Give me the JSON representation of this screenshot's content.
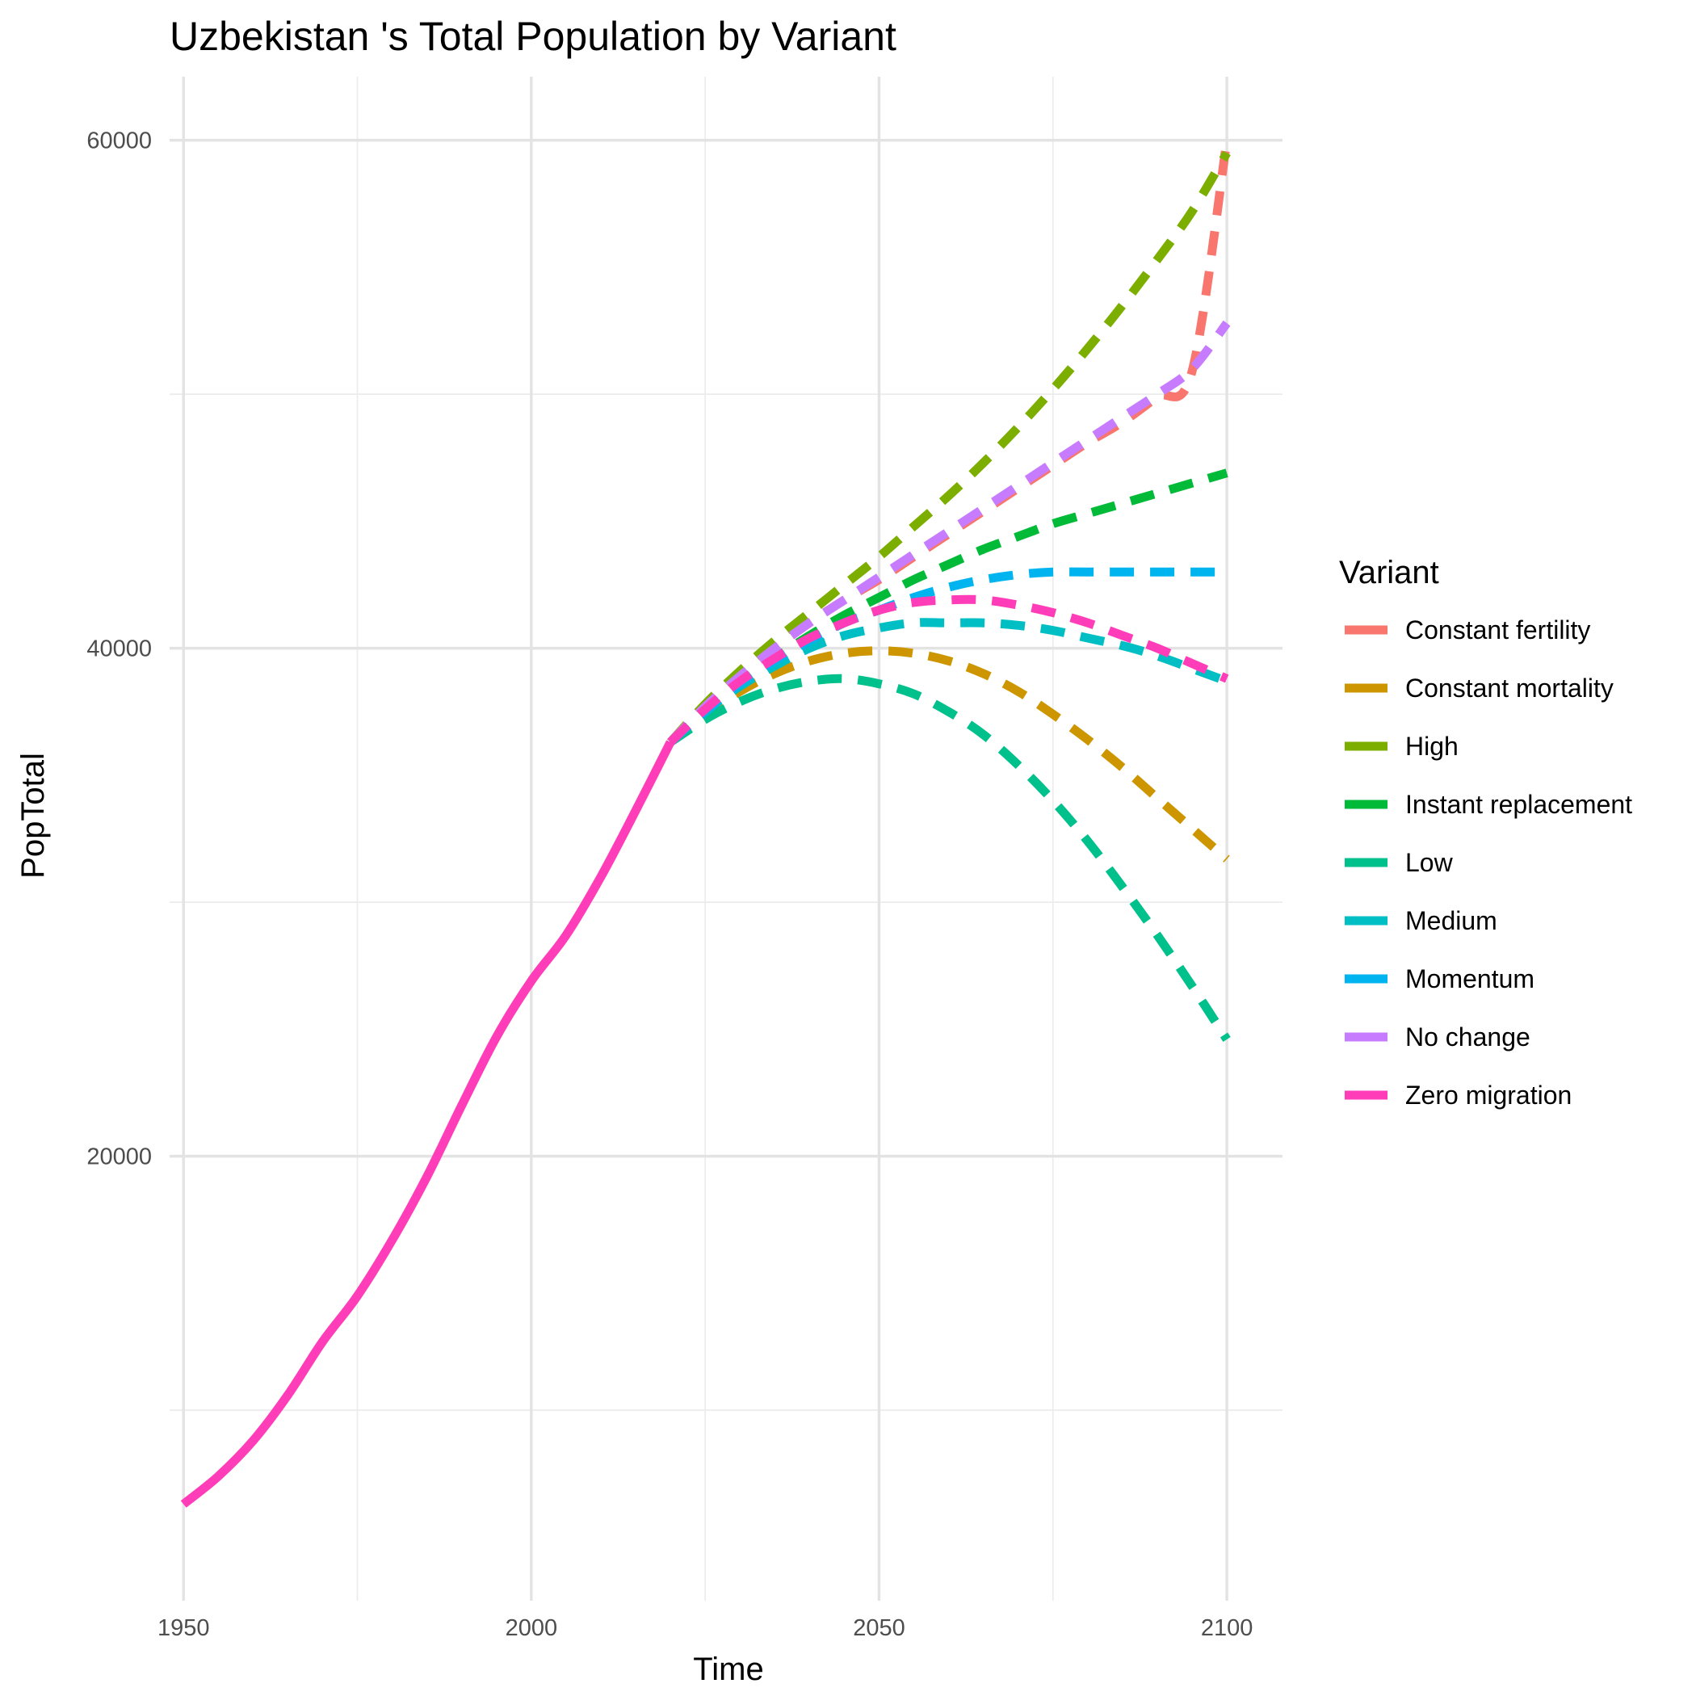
{
  "chart_data": {
    "type": "line",
    "title": "Uzbekistan 's Total Population by Variant",
    "xlabel": "Time",
    "ylabel": "PopTotal",
    "xlim": [
      1948,
      2108
    ],
    "ylim": [
      2500,
      62500
    ],
    "x_ticks": [
      1950,
      2000,
      2050,
      2100
    ],
    "x_tick_labels": [
      "1950",
      "2000",
      "2050",
      "2100"
    ],
    "y_ticks": [
      20000,
      40000,
      60000
    ],
    "y_tick_labels": [
      "20000",
      "40000",
      "60000"
    ],
    "y_minor_ticks": [
      10000,
      30000,
      50000
    ],
    "x_minor_ticks": [
      1975,
      2025,
      2075
    ],
    "grid": true,
    "legend": {
      "title": "Variant",
      "position": "right"
    },
    "historical": {
      "name": "Zero migration",
      "color": "#FF3DB8",
      "x": [
        1950,
        1955,
        1960,
        1965,
        1970,
        1975,
        1980,
        1985,
        1990,
        1995,
        2000,
        2005,
        2010,
        2015,
        2020
      ],
      "y": [
        6300,
        7400,
        8800,
        10600,
        12700,
        14500,
        16700,
        19200,
        22000,
        24700,
        26900,
        28700,
        31000,
        33600,
        36300
      ]
    },
    "series": [
      {
        "name": "Constant fertility",
        "color": "#F8766D",
        "x": [
          2020,
          2025,
          2030,
          2035,
          2040,
          2045,
          2050,
          2055,
          2060,
          2065,
          2070,
          2075,
          2080,
          2085,
          2090,
          2095,
          2100
        ],
        "y": [
          36300,
          37700,
          38900,
          40000,
          41000,
          41900,
          42700,
          43600,
          44500,
          45400,
          46300,
          47200,
          48100,
          48900,
          49900,
          50900,
          60000
        ]
      },
      {
        "name": "Constant mortality",
        "color": "#CD9600",
        "x": [
          2020,
          2025,
          2030,
          2035,
          2040,
          2045,
          2050,
          2055,
          2060,
          2065,
          2070,
          2075,
          2080,
          2085,
          2090,
          2095,
          2100
        ],
        "y": [
          36300,
          37400,
          38300,
          39000,
          39500,
          39800,
          39900,
          39800,
          39500,
          39000,
          38300,
          37400,
          36400,
          35300,
          34100,
          32900,
          31700
        ]
      },
      {
        "name": "High",
        "color": "#7CAE00",
        "x": [
          2020,
          2025,
          2030,
          2035,
          2040,
          2045,
          2050,
          2055,
          2060,
          2065,
          2070,
          2075,
          2080,
          2085,
          2090,
          2095,
          2100
        ],
        "y": [
          36300,
          37800,
          39100,
          40300,
          41400,
          42500,
          43600,
          44800,
          46000,
          47300,
          48700,
          50200,
          51800,
          53500,
          55300,
          57200,
          59500
        ]
      },
      {
        "name": "Instant replacement",
        "color": "#00BA38",
        "x": [
          2020,
          2025,
          2030,
          2035,
          2040,
          2045,
          2050,
          2055,
          2060,
          2065,
          2070,
          2075,
          2080,
          2085,
          2090,
          2095,
          2100
        ],
        "y": [
          36300,
          37500,
          38600,
          39600,
          40500,
          41300,
          42000,
          42700,
          43300,
          43900,
          44400,
          44900,
          45300,
          45700,
          46100,
          46500,
          46900
        ]
      },
      {
        "name": "Low",
        "color": "#00C08B",
        "x": [
          2020,
          2025,
          2030,
          2035,
          2040,
          2045,
          2050,
          2055,
          2060,
          2065,
          2070,
          2075,
          2080,
          2085,
          2090,
          2095,
          2100
        ],
        "y": [
          36300,
          37200,
          37900,
          38400,
          38700,
          38800,
          38600,
          38200,
          37500,
          36600,
          35400,
          34000,
          32400,
          30600,
          28700,
          26700,
          24600
        ]
      },
      {
        "name": "Medium",
        "color": "#00BFC4",
        "x": [
          2020,
          2025,
          2030,
          2035,
          2040,
          2045,
          2050,
          2055,
          2060,
          2065,
          2070,
          2075,
          2080,
          2085,
          2090,
          2095,
          2100
        ],
        "y": [
          36300,
          37500,
          38500,
          39300,
          40000,
          40500,
          40800,
          41000,
          41000,
          41000,
          40900,
          40700,
          40400,
          40100,
          39700,
          39200,
          38700
        ]
      },
      {
        "name": "Momentum",
        "color": "#00B4F0",
        "x": [
          2020,
          2025,
          2030,
          2035,
          2040,
          2045,
          2050,
          2055,
          2060,
          2065,
          2070,
          2075,
          2080,
          2085,
          2090,
          2095,
          2100
        ],
        "y": [
          36300,
          37500,
          38600,
          39500,
          40300,
          41000,
          41500,
          42000,
          42400,
          42700,
          42900,
          43000,
          43000,
          43000,
          43000,
          43000,
          43000
        ]
      },
      {
        "name": "No change",
        "color": "#C77CFF",
        "x": [
          2020,
          2025,
          2030,
          2035,
          2040,
          2045,
          2050,
          2055,
          2060,
          2065,
          2070,
          2075,
          2080,
          2085,
          2090,
          2095,
          2100
        ],
        "y": [
          36300,
          37700,
          38900,
          40000,
          41000,
          41900,
          42800,
          43700,
          44600,
          45500,
          46400,
          47300,
          48200,
          49100,
          50000,
          51000,
          52800
        ]
      },
      {
        "name": "Zero migration",
        "color": "#FF3DB8",
        "x": [
          2020,
          2025,
          2030,
          2035,
          2040,
          2045,
          2050,
          2055,
          2060,
          2065,
          2070,
          2075,
          2080,
          2085,
          2090,
          2095,
          2100
        ],
        "y": [
          36300,
          37600,
          38700,
          39600,
          40400,
          41000,
          41500,
          41800,
          41900,
          41900,
          41700,
          41400,
          41000,
          40500,
          40000,
          39400,
          38800
        ]
      }
    ]
  }
}
